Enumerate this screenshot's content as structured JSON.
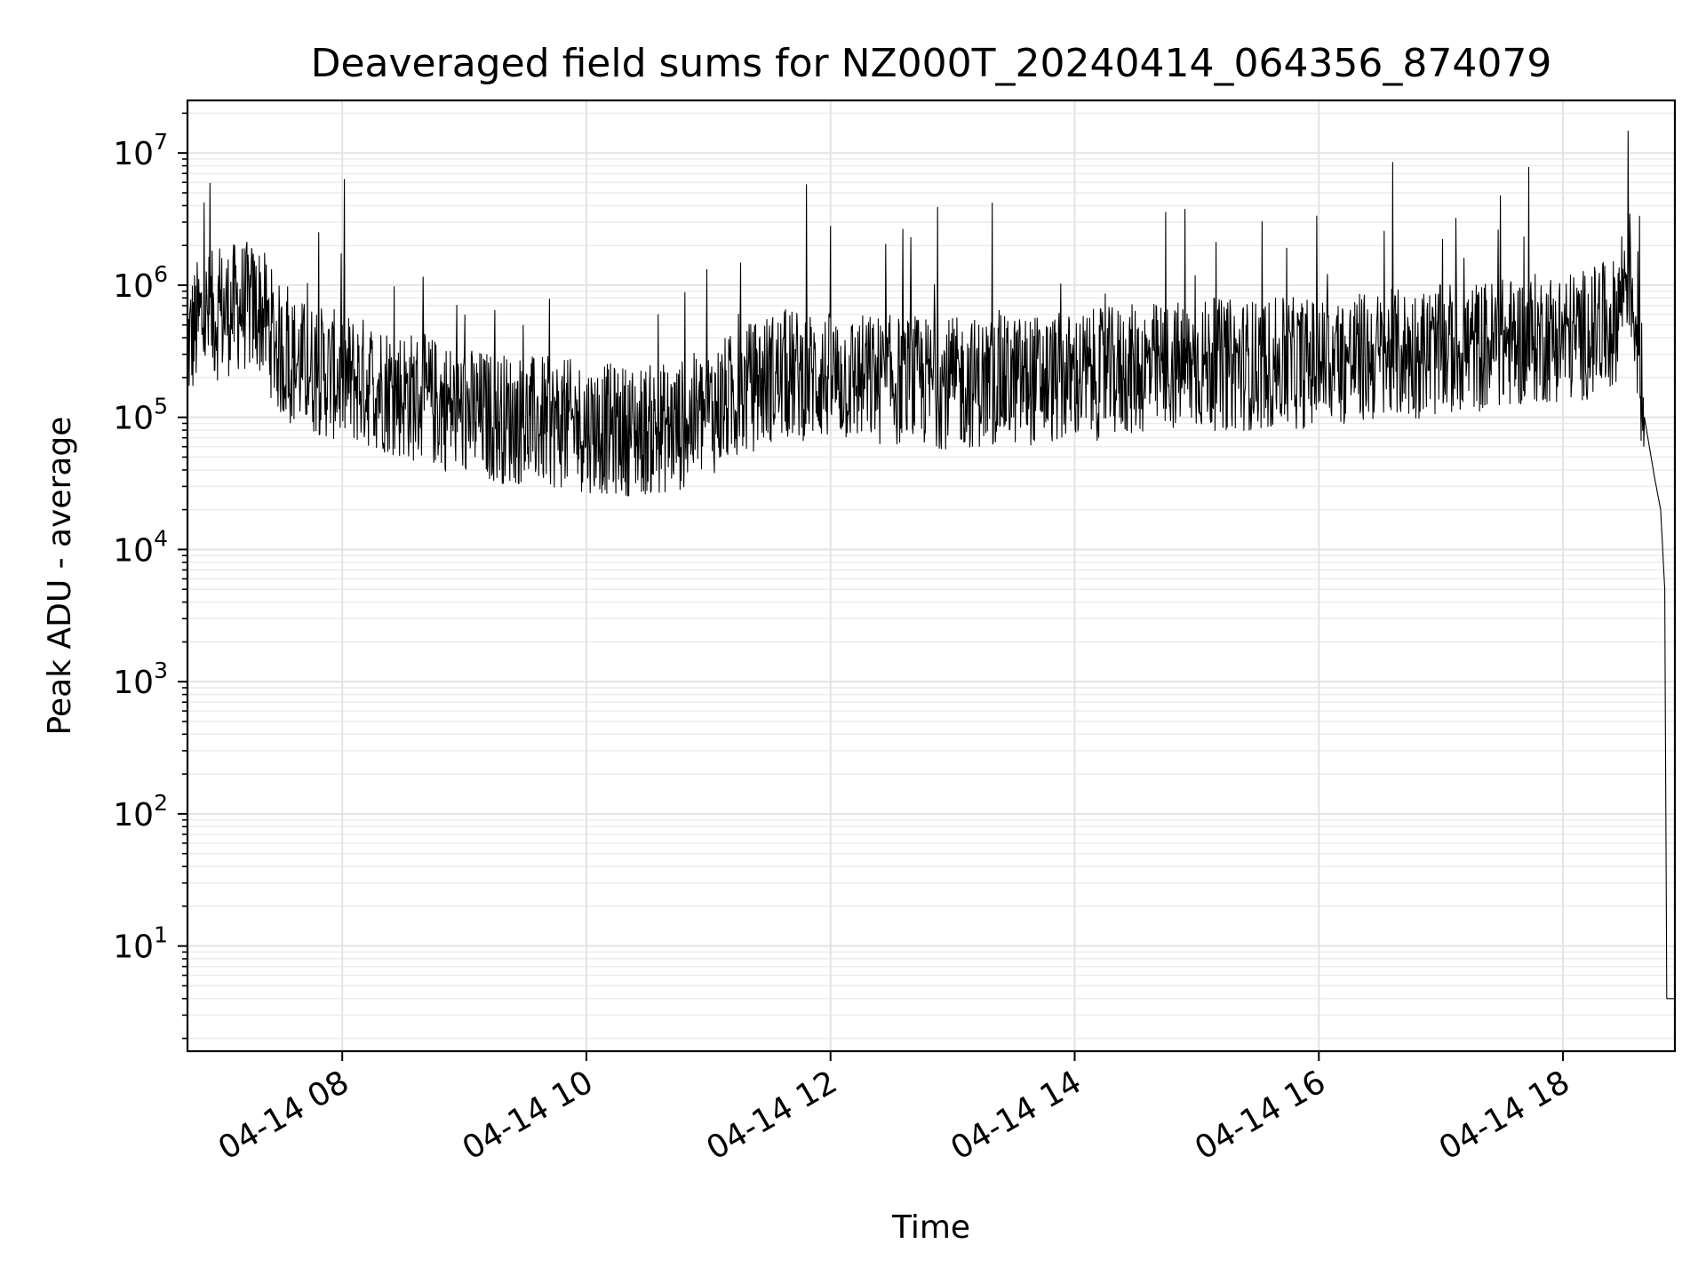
{
  "chart_data": {
    "type": "line",
    "title": "Deaveraged field sums for NZ000T_20240414_064356_874079",
    "xlabel": "Time",
    "ylabel": "Peak ADU - average",
    "y_scale": "log",
    "ylim": [
      1.6,
      25000000
    ],
    "xlim": [
      "2024-04-14 06:43:56",
      "2024-04-14 18:55:00"
    ],
    "x_ticks": [
      {
        "time": "2024-04-14 08:00",
        "label": "04-14 08"
      },
      {
        "time": "2024-04-14 10:00",
        "label": "04-14 10"
      },
      {
        "time": "2024-04-14 12:00",
        "label": "04-14 12"
      },
      {
        "time": "2024-04-14 14:00",
        "label": "04-14 14"
      },
      {
        "time": "2024-04-14 16:00",
        "label": "04-14 16"
      },
      {
        "time": "2024-04-14 18:00",
        "label": "04-14 18"
      }
    ],
    "y_ticks": [
      {
        "value": 10,
        "base": "10",
        "exp": "1"
      },
      {
        "value": 100,
        "base": "10",
        "exp": "2"
      },
      {
        "value": 1000,
        "base": "10",
        "exp": "3"
      },
      {
        "value": 10000,
        "base": "10",
        "exp": "4"
      },
      {
        "value": 100000,
        "base": "10",
        "exp": "5"
      },
      {
        "value": 1000000,
        "base": "10",
        "exp": "6"
      },
      {
        "value": 10000000,
        "base": "10",
        "exp": "7"
      }
    ],
    "grid": true,
    "line_color": "#000000",
    "series": [
      {
        "x": [
          "2024-04-14 06:44",
          "2024-04-14 06:50",
          "2024-04-14 07:00",
          "2024-04-14 07:10",
          "2024-04-14 07:20",
          "2024-04-14 07:30",
          "2024-04-14 07:40",
          "2024-04-14 07:50",
          "2024-04-14 08:00",
          "2024-04-14 08:15",
          "2024-04-14 08:30",
          "2024-04-14 08:45",
          "2024-04-14 09:00",
          "2024-04-14 09:15",
          "2024-04-14 09:30",
          "2024-04-14 09:45",
          "2024-04-14 10:00",
          "2024-04-14 10:15",
          "2024-04-14 10:30",
          "2024-04-14 10:45",
          "2024-04-14 11:00",
          "2024-04-14 11:15",
          "2024-04-14 11:30",
          "2024-04-14 11:45",
          "2024-04-14 12:00",
          "2024-04-14 12:30",
          "2024-04-14 13:00",
          "2024-04-14 13:30",
          "2024-04-14 14:00",
          "2024-04-14 14:30",
          "2024-04-14 15:00",
          "2024-04-14 15:30",
          "2024-04-14 16:00",
          "2024-04-14 16:30",
          "2024-04-14 17:00",
          "2024-04-14 17:30",
          "2024-04-14 17:50",
          "2024-04-14 18:10",
          "2024-04-14 18:25",
          "2024-04-14 18:32",
          "2024-04-14 18:36",
          "2024-04-14 18:40",
          "2024-04-14 18:45",
          "2024-04-14 18:48",
          "2024-04-14 18:50",
          "2024-04-14 18:51",
          "2024-04-14 18:55"
        ],
        "y": [
          350000,
          550000,
          600000,
          700000,
          650000,
          300000,
          250000,
          220000,
          200000,
          180000,
          150000,
          130000,
          110000,
          100000,
          95000,
          90000,
          85000,
          80000,
          80000,
          85000,
          110000,
          150000,
          200000,
          210000,
          200000,
          190000,
          180000,
          190000,
          200000,
          230000,
          250000,
          250000,
          260000,
          290000,
          320000,
          360000,
          400000,
          420000,
          500000,
          1500000,
          500000,
          100000,
          35000,
          20000,
          5000,
          4,
          4
        ]
      }
    ]
  }
}
